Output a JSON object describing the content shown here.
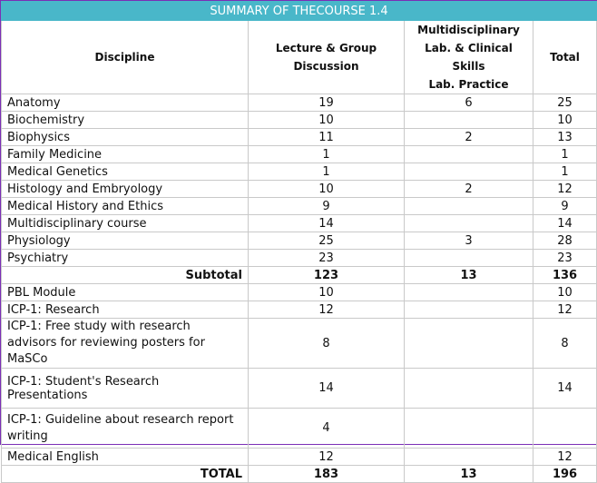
{
  "title": "SUMMARY OF THECOURSE 1.4",
  "headers": {
    "discipline": "Discipline",
    "lecture": "Lecture & Group Discussion",
    "lab_line1": "Multidisciplinary",
    "lab_line2": "Lab. & Clinical Skills",
    "lab_line3": "Lab. Practice",
    "total": "Total"
  },
  "rows": [
    {
      "discipline": "Anatomy",
      "lecture": "19",
      "lab": "6",
      "total": "25"
    },
    {
      "discipline": "Biochemistry",
      "lecture": "10",
      "lab": "",
      "total": "10"
    },
    {
      "discipline": "Biophysics",
      "lecture": "11",
      "lab": "2",
      "total": "13"
    },
    {
      "discipline": "Family Medicine",
      "lecture": "1",
      "lab": "",
      "total": "1"
    },
    {
      "discipline": "Medical Genetics",
      "lecture": "1",
      "lab": "",
      "total": "1"
    },
    {
      "discipline": "Histology and Embryology",
      "lecture": "10",
      "lab": "2",
      "total": "12"
    },
    {
      "discipline": "Medical History and Ethics",
      "lecture": "9",
      "lab": "",
      "total": "9"
    },
    {
      "discipline": "Multidisciplinary course",
      "lecture": "14",
      "lab": "",
      "total": "14"
    },
    {
      "discipline": "Physiology",
      "lecture": "25",
      "lab": "3",
      "total": "28"
    },
    {
      "discipline": "Psychiatry",
      "lecture": "23",
      "lab": "",
      "total": "23"
    }
  ],
  "subtotal": {
    "label": "Subtotal",
    "lecture": "123",
    "lab": "13",
    "total": "136"
  },
  "rows2": [
    {
      "discipline": "PBL Module",
      "lecture": "10",
      "lab": "",
      "total": "10"
    },
    {
      "discipline": "ICP-1: Research",
      "lecture": "12",
      "lab": "",
      "total": "12"
    },
    {
      "discipline": "ICP-1: Free study with research advisors for reviewing posters for MaSCo",
      "lecture": "8",
      "lab": "",
      "total": "8"
    },
    {
      "discipline": "ICP-1: Student's Research Presentations",
      "lecture": "14",
      "lab": "",
      "total": "14"
    },
    {
      "discipline": "ICP-1: Guideline about research report writing",
      "lecture": "4",
      "lab": "",
      "total": ""
    },
    {
      "discipline": "Medical English",
      "lecture": "12",
      "lab": "",
      "total": "12"
    }
  ],
  "grand_total": {
    "label": "TOTAL",
    "lecture": "183",
    "lab": "13",
    "total": "196"
  }
}
